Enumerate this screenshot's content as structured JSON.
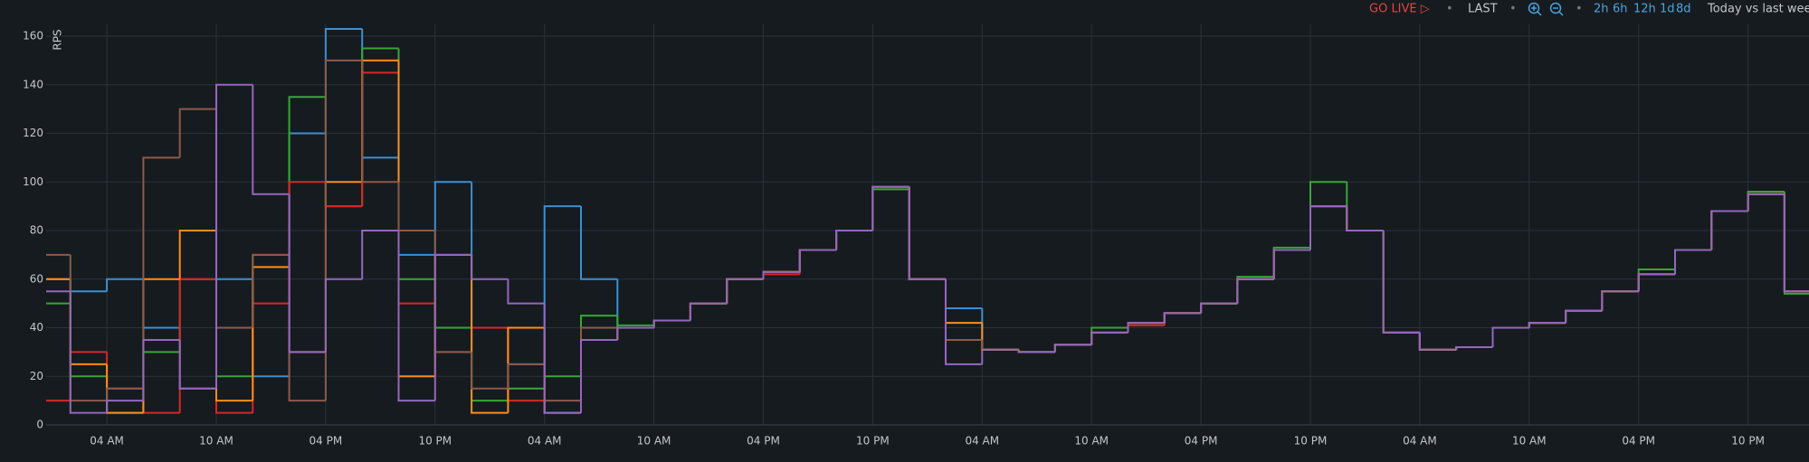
{
  "toolbar": {
    "go_live": "GO LIVE ▷",
    "separator": "•",
    "last": "LAST",
    "ranges": [
      "2h",
      "6h",
      "12h",
      "1d",
      "8d"
    ],
    "compare": "Today vs last wee"
  },
  "chart_data": {
    "type": "step",
    "y_label": "RPS",
    "categories": [
      null,
      null,
      "04 AM",
      null,
      null,
      "10 AM",
      null,
      null,
      "04 PM",
      null,
      null,
      "10 PM",
      null,
      null,
      "04 AM",
      null,
      null,
      "10 AM",
      null,
      null,
      "04 PM",
      null,
      null,
      "10 PM",
      null,
      null,
      "04 AM",
      null,
      null,
      "10 AM",
      null,
      null,
      "04 PM",
      null,
      null,
      "10 PM",
      null,
      null,
      "04 AM",
      null,
      null,
      "10 AM",
      null,
      null,
      "04 PM",
      null,
      null,
      "10 PM",
      null
    ],
    "series": [
      {
        "color": "#3b8fd4",
        "values": [
          60,
          55,
          60,
          40,
          15,
          60,
          20,
          120,
          163,
          110,
          70,
          100,
          40,
          25,
          90,
          60,
          40,
          43,
          50,
          60,
          63,
          72,
          80,
          98,
          60,
          48,
          31,
          30,
          33,
          38,
          42,
          46,
          50,
          60,
          72,
          90,
          80,
          38,
          31,
          32,
          40,
          42,
          47,
          55,
          62,
          72,
          88,
          95,
          55
        ]
      },
      {
        "color": "#37a635",
        "values": [
          50,
          20,
          5,
          30,
          60,
          20,
          70,
          135,
          90,
          155,
          60,
          40,
          10,
          15,
          20,
          45,
          41,
          43,
          50,
          60,
          63,
          72,
          80,
          97,
          60,
          35,
          31,
          30,
          33,
          40,
          42,
          46,
          50,
          61,
          73,
          100,
          80,
          38,
          31,
          32,
          40,
          42,
          47,
          55,
          64,
          72,
          88,
          96,
          54
        ]
      },
      {
        "color": "#d62728",
        "values": [
          10,
          30,
          15,
          5,
          60,
          5,
          50,
          100,
          90,
          145,
          50,
          30,
          40,
          10,
          5,
          40,
          40,
          43,
          50,
          60,
          62,
          72,
          80,
          98,
          60,
          35,
          31,
          30,
          33,
          38,
          41,
          46,
          50,
          60,
          72,
          90,
          80,
          38,
          31,
          32,
          40,
          42,
          47,
          55,
          62,
          72,
          88,
          95,
          55
        ]
      },
      {
        "color": "#ff8c1a",
        "values": [
          60,
          25,
          5,
          60,
          80,
          10,
          65,
          30,
          100,
          150,
          20,
          70,
          5,
          40,
          5,
          35,
          40,
          43,
          50,
          60,
          63,
          72,
          80,
          98,
          60,
          42,
          31,
          30,
          33,
          38,
          42,
          46,
          50,
          60,
          72,
          90,
          80,
          38,
          31,
          32,
          40,
          42,
          47,
          55,
          62,
          72,
          88,
          95,
          55
        ]
      },
      {
        "color": "#8c5a4a",
        "values": [
          70,
          10,
          15,
          110,
          130,
          40,
          70,
          10,
          150,
          100,
          80,
          30,
          15,
          25,
          10,
          40,
          40,
          43,
          50,
          60,
          63,
          72,
          80,
          98,
          60,
          35,
          31,
          30,
          33,
          38,
          42,
          46,
          50,
          60,
          72,
          90,
          80,
          38,
          31,
          32,
          40,
          42,
          47,
          55,
          62,
          72,
          88,
          95,
          55
        ]
      },
      {
        "color": "#9467bd",
        "values": [
          55,
          5,
          10,
          35,
          15,
          140,
          95,
          30,
          60,
          80,
          10,
          70,
          60,
          50,
          5,
          35,
          40,
          43,
          50,
          60,
          63,
          72,
          80,
          98,
          60,
          25,
          31,
          30,
          33,
          38,
          42,
          46,
          50,
          60,
          72,
          90,
          80,
          38,
          31,
          32,
          40,
          42,
          47,
          55,
          62,
          72,
          88,
          95,
          55
        ]
      }
    ],
    "ylim": [
      0,
      165
    ],
    "yticks": [
      0,
      20,
      40,
      60,
      80,
      100,
      120,
      140,
      160
    ],
    "grid": true
  }
}
